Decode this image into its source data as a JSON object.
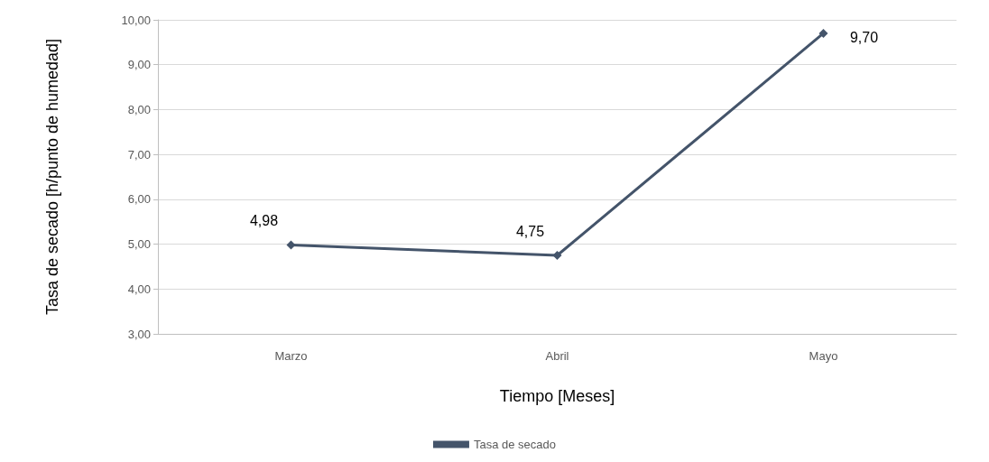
{
  "chart_data": {
    "type": "line",
    "xlabel": "Tiempo [Meses]",
    "ylabel": "Tasa de secado [h/punto de humedad]",
    "categories": [
      "Marzo",
      "Abril",
      "Mayo"
    ],
    "series": [
      {
        "name": "Tasa de secado",
        "color": "#44546a",
        "values": [
          4.98,
          4.75,
          9.7
        ],
        "value_labels": [
          "4,98",
          "4,75",
          "9,70"
        ]
      }
    ],
    "ylim": [
      3,
      10
    ],
    "yticks": [
      {
        "value": 3,
        "label": "3,00"
      },
      {
        "value": 4,
        "label": "4,00"
      },
      {
        "value": 5,
        "label": "5,00"
      },
      {
        "value": 6,
        "label": "6,00"
      },
      {
        "value": 7,
        "label": "7,00"
      },
      {
        "value": 8,
        "label": "8,00"
      },
      {
        "value": 9,
        "label": "9,00"
      },
      {
        "value": 10,
        "label": "10,00"
      }
    ],
    "grid": "y",
    "legend": "bottom",
    "marker": "diamond",
    "line_style": "solid"
  }
}
